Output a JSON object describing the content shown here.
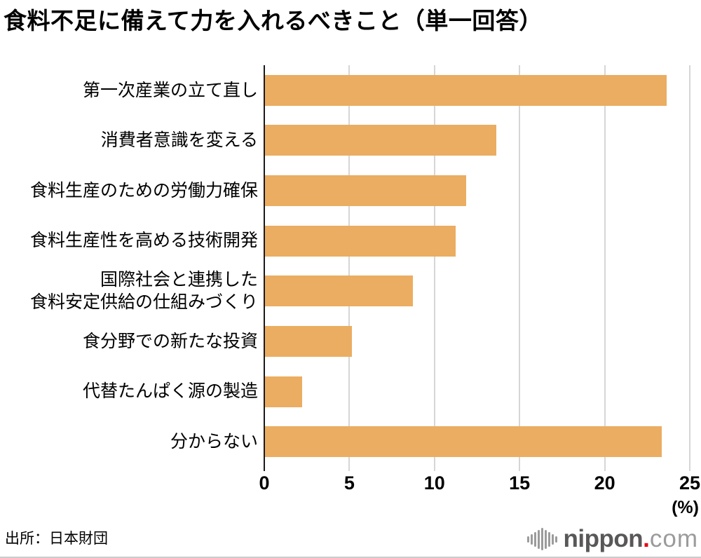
{
  "title": "食料不足に備えて力を入れるべきこと（単一回答）",
  "source": "出所：日本財団",
  "logo": {
    "brand": "nippon",
    "dot": ".",
    "suffix": "com",
    "icon": "waveform-icon"
  },
  "chart_data": {
    "type": "bar",
    "orientation": "horizontal",
    "title": "食料不足に備えて力を入れるべきこと（単一回答）",
    "categories": [
      "第一次産業の立て直し",
      "消費者意識を変える",
      "食料生産のための労働力確保",
      "食料生産性を高める技術開発",
      "国際社会と連携した\n食料安定供給の仕組みづくり",
      "食分野での新たな投資",
      "代替たんぱく源の製造",
      "分からない"
    ],
    "values": [
      23.6,
      13.6,
      11.8,
      11.2,
      8.7,
      5.1,
      2.2,
      23.3
    ],
    "xlabel": "(%)",
    "xlim": [
      0,
      25
    ],
    "xticks": [
      0,
      5,
      10,
      15,
      20,
      25
    ],
    "grid": "vertical-gridlines-on",
    "legend": "none",
    "bar_color": "#EBAD61",
    "gridline_color": "#D6D6D6",
    "axis_color": "#1A1A1A"
  }
}
